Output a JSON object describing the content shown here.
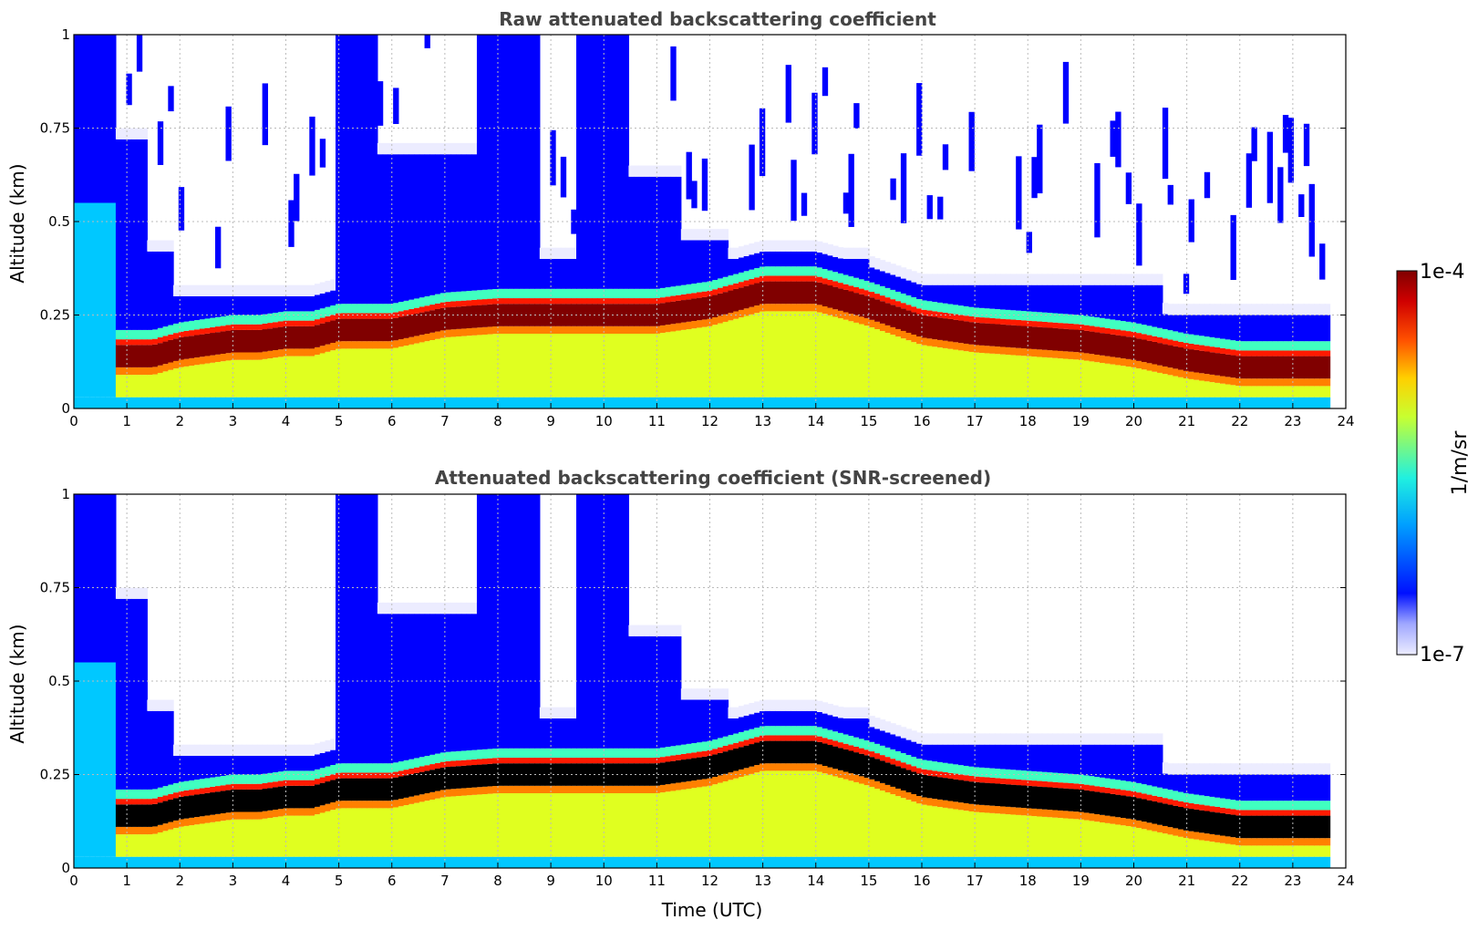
{
  "chart_data": [
    {
      "type": "heatmap",
      "title": "Raw attenuated backscattering coefficient",
      "xlabel": "",
      "ylabel": "Altitude (km)",
      "xlim": [
        0,
        24
      ],
      "ylim": [
        0,
        1
      ],
      "xticks": [
        "0",
        "1",
        "2",
        "3",
        "4",
        "5",
        "6",
        "7",
        "8",
        "9",
        "10",
        "11",
        "12",
        "13",
        "14",
        "15",
        "16",
        "17",
        "18",
        "19",
        "20",
        "21",
        "22",
        "23",
        "24"
      ],
      "yticks": [
        "0",
        "0.25",
        "0.5",
        "0.75",
        "1"
      ],
      "grid": true,
      "screened": false,
      "layer_height_km": {
        "t": [
          0.8,
          1.5,
          2,
          2.5,
          3,
          3.5,
          4,
          4.5,
          5,
          5.5,
          6,
          7,
          8,
          9,
          10,
          11,
          12,
          13,
          14,
          15,
          16,
          17,
          18,
          19,
          20,
          21,
          22,
          23,
          23.7
        ],
        "h": [
          0.13,
          0.13,
          0.15,
          0.16,
          0.17,
          0.17,
          0.18,
          0.18,
          0.2,
          0.2,
          0.2,
          0.23,
          0.24,
          0.24,
          0.24,
          0.24,
          0.26,
          0.3,
          0.3,
          0.26,
          0.21,
          0.19,
          0.18,
          0.17,
          0.15,
          0.12,
          0.1,
          0.1,
          0.1
        ]
      }
    },
    {
      "type": "heatmap",
      "title": "Attenuated backscattering coefficient (SNR-screened)",
      "xlabel": "Time (UTC)",
      "ylabel": "Altitude (km)",
      "xlim": [
        0,
        24
      ],
      "ylim": [
        0,
        1
      ],
      "xticks": [
        "0",
        "1",
        "2",
        "3",
        "4",
        "5",
        "6",
        "7",
        "8",
        "9",
        "10",
        "11",
        "12",
        "13",
        "14",
        "15",
        "16",
        "17",
        "18",
        "19",
        "20",
        "21",
        "22",
        "23",
        "24"
      ],
      "yticks": [
        "0",
        "0.25",
        "0.5",
        "0.75",
        "1"
      ],
      "grid": true,
      "screened": true,
      "layer_height_km": {
        "t": [
          0.8,
          1.5,
          2,
          2.5,
          3,
          3.5,
          4,
          4.5,
          5,
          5.5,
          6,
          7,
          8,
          9,
          10,
          11,
          12,
          13,
          14,
          15,
          16,
          17,
          18,
          19,
          20,
          21,
          22,
          23,
          23.7
        ],
        "h": [
          0.13,
          0.13,
          0.15,
          0.16,
          0.17,
          0.17,
          0.18,
          0.18,
          0.2,
          0.2,
          0.2,
          0.23,
          0.24,
          0.24,
          0.24,
          0.24,
          0.26,
          0.3,
          0.3,
          0.26,
          0.21,
          0.19,
          0.18,
          0.17,
          0.15,
          0.12,
          0.1,
          0.1,
          0.1
        ]
      }
    }
  ],
  "colorbar": {
    "label": "1/m/sr",
    "max_label": "1e-4",
    "min_label": "1e-7",
    "colors": [
      "#ececff",
      "#0000ff",
      "#00c8ff",
      "#40ffc0",
      "#e0ff20",
      "#ff8000",
      "#ff1a00",
      "#800000"
    ]
  }
}
